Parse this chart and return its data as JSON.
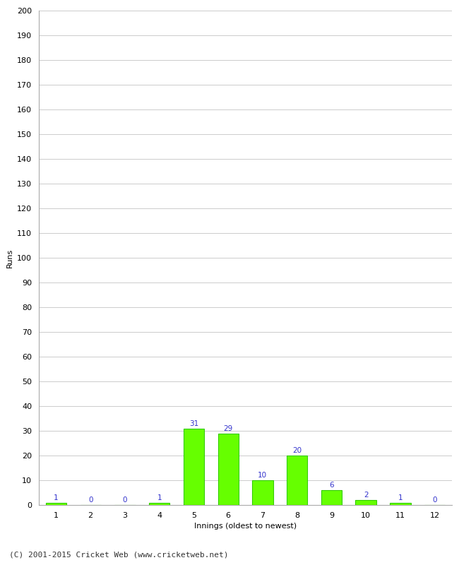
{
  "categories": [
    1,
    2,
    3,
    4,
    5,
    6,
    7,
    8,
    9,
    10,
    11,
    12
  ],
  "values": [
    1,
    0,
    0,
    1,
    31,
    29,
    10,
    20,
    6,
    2,
    1,
    0
  ],
  "bar_color": "#66ff00",
  "bar_edge_color": "#33cc00",
  "xlabel": "Innings (oldest to newest)",
  "ylabel": "Runs",
  "ylim": [
    0,
    200
  ],
  "ytick_step": 10,
  "label_color": "#3333cc",
  "footer": "(C) 2001-2015 Cricket Web (www.cricketweb.net)",
  "background_color": "#ffffff",
  "grid_color": "#cccccc",
  "label_fontsize": 7.5,
  "axis_label_fontsize": 8,
  "tick_fontsize": 8,
  "footer_fontsize": 8
}
